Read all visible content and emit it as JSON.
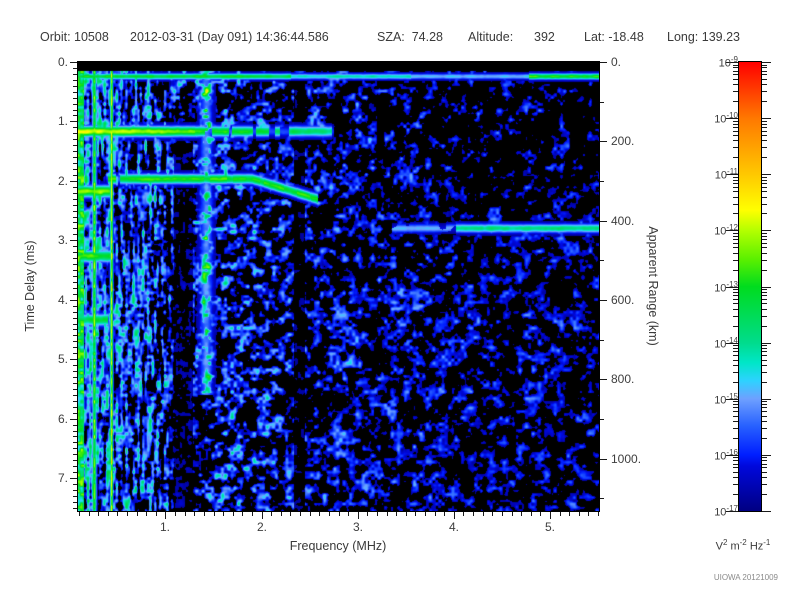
{
  "header": {
    "items": [
      "Orbit: 10508",
      "2012-03-31 (Day 091) 14:36:44.586",
      "SZA:  74.28",
      "Altitude:      392",
      "Lat: -18.48",
      "Long: 139.23"
    ]
  },
  "chart_data": {
    "type": "heatmap",
    "title": "",
    "x_axis": {
      "label": "Frequency (MHz)",
      "min": 0.09,
      "max": 5.51,
      "major_ticks": [
        1,
        2,
        3,
        4,
        5
      ],
      "tick_labels": [
        "1.",
        "2.",
        "3.",
        "4.",
        "5."
      ],
      "minor_step": 0.1
    },
    "y_left_axis": {
      "label": "Time Delay (ms)",
      "min": 0,
      "max": 7.55,
      "major_ticks": [
        0,
        1,
        2,
        3,
        4,
        5,
        6,
        7
      ],
      "tick_labels": [
        "0.",
        "1.",
        "2.",
        "3.",
        "4.",
        "5.",
        "6.",
        "7."
      ],
      "minor_step": 0.1,
      "direction": "down"
    },
    "y_right_axis": {
      "label": "Apparent Range (km)",
      "major_ticks": [
        0,
        200,
        400,
        600,
        800,
        1000
      ],
      "tick_labels": [
        "0.",
        "200.",
        "400.",
        "600.",
        "800.",
        "1000."
      ],
      "minor_step": 100,
      "km_per_ms": 149.9
    },
    "colorbar": {
      "scale": "log",
      "top_value": "1e-9",
      "bottom_value": "1e-17",
      "exponents": [
        -9,
        -10,
        -11,
        -12,
        -13,
        -14,
        -15,
        -16,
        -17
      ],
      "unit_parts": [
        [
          "V",
          "2"
        ],
        [
          "m",
          "-2"
        ],
        [
          "Hz",
          "-1"
        ]
      ],
      "stops": [
        [
          0,
          "#000082"
        ],
        [
          0.1,
          "#0008dc"
        ],
        [
          0.125,
          "#001eff"
        ],
        [
          0.19,
          "#2861ff"
        ],
        [
          0.25,
          "#6ea0ff"
        ],
        [
          0.29,
          "#2ed2ff"
        ],
        [
          0.33,
          "#00e6c8"
        ],
        [
          0.375,
          "#00dc8c"
        ],
        [
          0.5,
          "#00dc1e"
        ],
        [
          0.56,
          "#5af000"
        ],
        [
          0.625,
          "#b4ff00"
        ],
        [
          0.67,
          "#ffff00"
        ],
        [
          0.75,
          "#ffc800"
        ],
        [
          0.875,
          "#ff7800"
        ],
        [
          1,
          "#ff0000"
        ]
      ]
    },
    "background": {
      "peak_points": [
        [
          0.09,
          0.56
        ],
        [
          0.6,
          0.5
        ],
        [
          1.1,
          0.46
        ],
        [
          1.8,
          0.42
        ],
        [
          2.5,
          0.35
        ],
        [
          3.3,
          0.3
        ],
        [
          4.2,
          0.27
        ],
        [
          5.51,
          0.25
        ]
      ],
      "threshold": {
        "lowf_cut": 0.35,
        "lowf_th": 0.33,
        "mid_cut": 0.95,
        "mid_th": 0.44,
        "base": 0.46,
        "slope": 0.075,
        "sparse": {
          "fmin": 3.2,
          "tmax": 1.9,
          "extra": 0.08
        }
      },
      "stripe_fade": [
        0.9,
        1.45
      ]
    },
    "features": {
      "top_black_ms": 0.15,
      "surface_line": {
        "t": 0.235,
        "sigma": 0.05,
        "segments": [
          [
            0.09,
            2.3,
            0.48
          ],
          [
            2.3,
            3.55,
            0.34
          ],
          [
            3.55,
            4.78,
            0.27
          ],
          [
            4.78,
            5.51,
            0.53
          ]
        ]
      },
      "delay_band": {
        "t": 1.16,
        "sigma": 0.09,
        "fmax": 2.75,
        "L0": 0.68,
        "slope": 0.09,
        "chunk_from": 1.3
      },
      "harmonic_bands": [
        {
          "t": 2.17,
          "fmax": 0.42,
          "L": 0.62
        },
        {
          "t": 3.26,
          "fmax": 0.42,
          "L": 0.56
        },
        {
          "t": 4.33,
          "fmax": 0.4,
          "L": 0.48
        }
      ],
      "echo_trace": {
        "t_flat": 1.96,
        "f_start": 0.4,
        "f_solid": 1.0,
        "f_bend": 1.9,
        "f_end": 2.58,
        "t_end": 2.3,
        "sigma": 0.085,
        "L": 0.54
      },
      "range_line": {
        "t": 2.79,
        "sigma": 0.075,
        "f_faint": 3.35,
        "f_bright": 4.02,
        "L_bright": 0.41,
        "L_faint": 0.3
      },
      "dark_gaps": [
        {
          "f0": 1.08,
          "f1": 1.28,
          "tmin": 1.35,
          "atten": 0.25
        },
        {
          "f0": 2.33,
          "f1": 2.45,
          "tmin": 0.3,
          "atten": 0.15
        }
      ],
      "bright_columns": [
        {
          "f": 0.255,
          "w": 0.022,
          "L": 0.58,
          "solid": 0.85
        },
        {
          "f": 0.435,
          "w": 0.016,
          "L": 0.66,
          "solid": 0.9
        },
        {
          "f": 1.42,
          "w": 0.07,
          "L": 0.5,
          "solid": 0.3,
          "tmax": 5.6
        }
      ],
      "left_edge": {
        "fmax": 0.145,
        "L": 0.45
      }
    },
    "seed": 20121009
  },
  "credit": "UIOWA 20121009"
}
